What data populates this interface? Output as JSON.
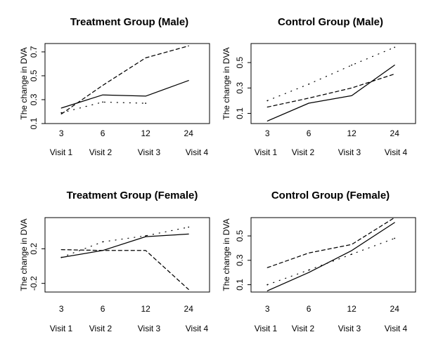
{
  "chart_data": [
    {
      "type": "line",
      "title": "Treatment Group (Male)",
      "ylabel": "The change in DVA",
      "categories": [
        "3",
        "6",
        "12",
        "24"
      ],
      "visits": [
        "Visit 1",
        "Visit 2",
        "Visit 3",
        "Visit 4"
      ],
      "yticks": [
        "0.1",
        "0.3",
        "0.5",
        "0.7"
      ],
      "ylim": [
        0.1,
        0.77
      ],
      "series": [
        {
          "style": "solid",
          "values": [
            0.23,
            0.34,
            0.33,
            0.46
          ]
        },
        {
          "style": "dashed",
          "values": [
            0.18,
            0.42,
            0.65,
            0.75
          ]
        },
        {
          "style": "dotted",
          "values": [
            0.19,
            0.28,
            0.27,
            null
          ]
        }
      ]
    },
    {
      "type": "line",
      "title": "Control Group (Male)",
      "ylabel": "The change in DVA",
      "categories": [
        "3",
        "6",
        "12",
        "24"
      ],
      "visits": [
        "Visit 1",
        "Visit 2",
        "Visit 3",
        "Visit 4"
      ],
      "yticks": [
        "0.1",
        "0.3",
        "0.5"
      ],
      "ylim": [
        0.02,
        0.65
      ],
      "series": [
        {
          "style": "solid",
          "values": [
            0.04,
            0.18,
            0.24,
            0.48
          ]
        },
        {
          "style": "dashed",
          "values": [
            0.15,
            0.22,
            0.3,
            0.41
          ]
        },
        {
          "style": "dotted",
          "values": [
            0.2,
            0.33,
            0.48,
            0.62
          ]
        }
      ]
    },
    {
      "type": "line",
      "title": "Treatment Group (Female)",
      "ylabel": "The change in DVA",
      "categories": [
        "3",
        "6",
        "12",
        "24"
      ],
      "visits": [
        "Visit 1",
        "Visit 2",
        "Visit 3",
        "Visit 4"
      ],
      "yticks": [
        "-0.2",
        "0.2"
      ],
      "ylim": [
        -0.3,
        0.56
      ],
      "series": [
        {
          "style": "solid",
          "values": [
            0.1,
            0.18,
            0.34,
            0.37
          ]
        },
        {
          "style": "dashed",
          "values": [
            0.19,
            0.18,
            0.18,
            -0.27
          ]
        },
        {
          "style": "dotted",
          "values": [
            0.1,
            0.28,
            0.35,
            0.45
          ]
        }
      ]
    },
    {
      "type": "line",
      "title": "Control Group (Female)",
      "ylabel": "The change in DVA",
      "categories": [
        "3",
        "6",
        "12",
        "24"
      ],
      "visits": [
        "Visit 1",
        "Visit 2",
        "Visit 3",
        "Visit 4"
      ],
      "yticks": [
        "0.1",
        "0.3",
        "0.5"
      ],
      "ylim": [
        0.04,
        0.65
      ],
      "series": [
        {
          "style": "solid",
          "values": [
            0.05,
            0.2,
            0.38,
            0.61
          ]
        },
        {
          "style": "dashed",
          "values": [
            0.24,
            0.36,
            0.43,
            0.65
          ]
        },
        {
          "style": "dotted",
          "values": [
            0.1,
            0.22,
            0.35,
            0.48
          ]
        }
      ]
    }
  ]
}
